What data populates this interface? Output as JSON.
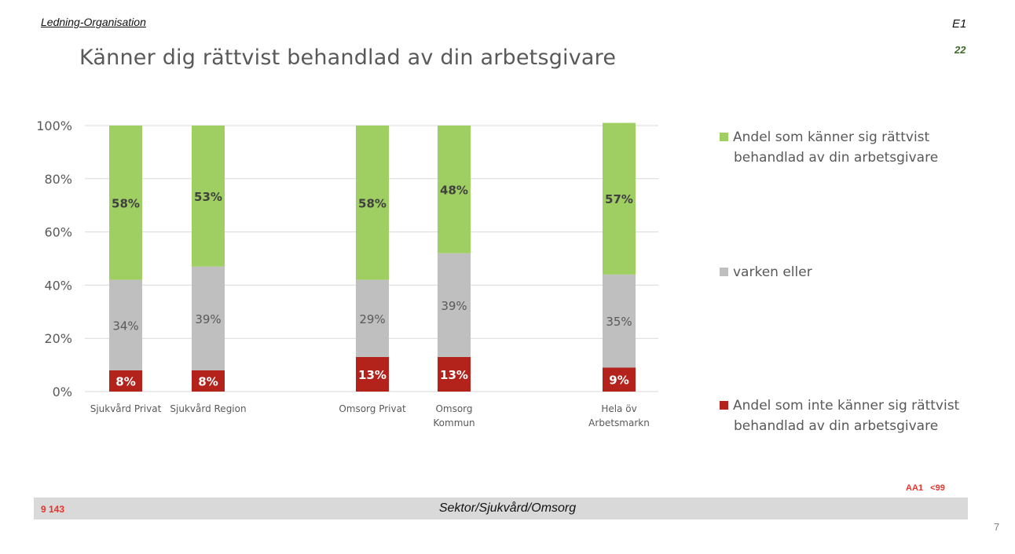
{
  "header": {
    "section": "Ledning-Organisation",
    "code": "E1",
    "number": "22"
  },
  "footer": {
    "n_label": "9 143",
    "title": "Sektor/Sjukvård/Omsorg",
    "codes": "AA1   <99",
    "page_number": "7"
  },
  "colors": {
    "positive": "#9fce63",
    "neutral": "#bfbfbf",
    "negative": "#b3221b"
  },
  "chart_data": {
    "type": "bar",
    "stacked": true,
    "title": "Känner dig rättvist behandlad av din arbetsgivare",
    "xlabel": "",
    "ylabel": "",
    "ylim": [
      0,
      100
    ],
    "yticks": [
      "0%",
      "20%",
      "40%",
      "60%",
      "80%",
      "100%"
    ],
    "grid": true,
    "legend_position": "right",
    "categories": [
      {
        "label": [
          "Sjukvård Privat"
        ]
      },
      {
        "label": [
          "Sjukvård Region"
        ]
      },
      {
        "label": [
          "Omsorg Privat"
        ]
      },
      {
        "label": [
          "Omsorg",
          "Kommun"
        ]
      },
      {
        "label": [
          "Hela öv",
          "Arbetsmarkn"
        ]
      }
    ],
    "series": [
      {
        "name": "Andel som inte känner sig rättvist behandlad av din arbetsgivare",
        "key": "negative",
        "values": [
          8,
          8,
          13,
          13,
          9
        ],
        "labels": [
          "8%",
          "8%",
          "13%",
          "13%",
          "9%"
        ]
      },
      {
        "name": "varken eller",
        "key": "neutral",
        "values": [
          34,
          39,
          29,
          39,
          35
        ],
        "labels": [
          "34%",
          "39%",
          "29%",
          "39%",
          "35%"
        ]
      },
      {
        "name": "Andel som känner sig rättvist behandlad av din arbetsgivare",
        "key": "positive",
        "values": [
          58,
          53,
          58,
          48,
          57
        ],
        "labels": [
          "58%",
          "53%",
          "58%",
          "48%",
          "57%"
        ]
      }
    ],
    "legend": [
      {
        "key": "positive",
        "lines": [
          "Andel som känner sig rättvist",
          "behandlad av din arbetsgivare"
        ]
      },
      {
        "key": "neutral",
        "lines": [
          "varken eller"
        ]
      },
      {
        "key": "negative",
        "lines": [
          "Andel som inte känner sig rättvist",
          "behandlad av din arbetsgivare"
        ]
      }
    ]
  }
}
